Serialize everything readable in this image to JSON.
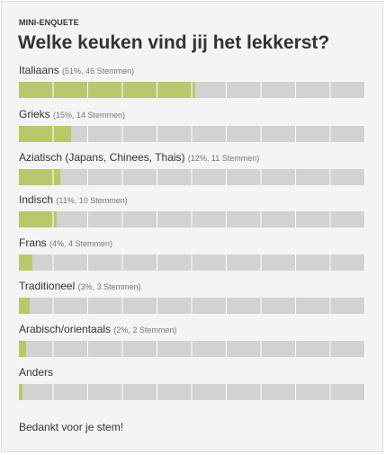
{
  "poll": {
    "kicker": "MINI-ENQUETE",
    "question": "Welke keuken vind jij het lekkerst?",
    "options": [
      {
        "label": "Italiaans",
        "stats": "(51%, 46 Stemmen)",
        "percent": 51
      },
      {
        "label": "Grieks",
        "stats": "(15%, 14 Stemmen)",
        "percent": 15
      },
      {
        "label": "Aziatisch (Japans, Chinees, Thais)",
        "stats": "(12%, 11 Stemmen)",
        "percent": 12
      },
      {
        "label": "Indisch",
        "stats": "(11%, 10 Stemmen)",
        "percent": 11
      },
      {
        "label": "Frans",
        "stats": "(4%, 4 Stemmen)",
        "percent": 4
      },
      {
        "label": "Traditioneel",
        "stats": "(3%, 3 Stemmen)",
        "percent": 3
      },
      {
        "label": "Arabisch/orientaals",
        "stats": "(2%, 2 Stemmen)",
        "percent": 2
      },
      {
        "label": "Anders",
        "stats": "",
        "percent": 1
      }
    ],
    "thanks": "Bedankt voor je stem!"
  },
  "colors": {
    "bar_fill": "#b8c96b",
    "bar_track": "#d2d2d2",
    "panel": "#f4f4f4"
  }
}
